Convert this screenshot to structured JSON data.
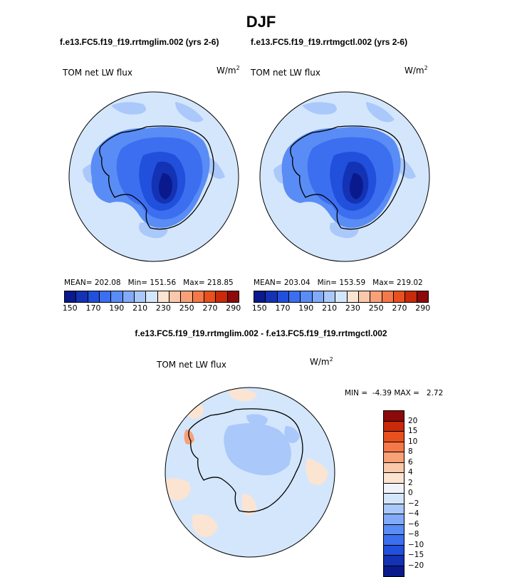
{
  "figure": {
    "season": "DJF",
    "case_test": "f.e13.FC5.f19_f19.rrtmglim.002 (yrs 2-6)",
    "case_ctrl": "f.e13.FC5.f19_f19.rrtmgctl.002 (yrs 2-6)",
    "diff_title": "f.e13.FC5.f19_f19.rrtmglim.002 - f.e13.FC5.f19_f19.rrtmgctl.002"
  },
  "chart_data": [
    {
      "type": "heatmap",
      "subtype": "polar-stereographic-map",
      "region": "Southern Hemisphere (Antarctica)",
      "variable": "TOM net LW flux",
      "units": "W/m²",
      "case": "f.e13.FC5.f19_f19.rrtmglim.002 (yrs 2-6)",
      "stats": {
        "mean": "202.08",
        "min": "151.56",
        "max": "218.85"
      },
      "stats_text": "MEAN= 202.08   Min= 151.56   Max= 218.85",
      "levels": [
        150,
        160,
        170,
        180,
        190,
        200,
        210,
        220,
        230,
        240,
        250,
        260,
        270,
        280,
        290
      ],
      "tick_labels": [
        "150",
        "170",
        "190",
        "210",
        "230",
        "250",
        "270",
        "290"
      ],
      "colors": [
        "#0a1a8c",
        "#1432b4",
        "#2050dc",
        "#3c6ef0",
        "#5a8cf5",
        "#82aaf8",
        "#aac8fa",
        "#d4e6fc",
        "#fce4d2",
        "#fac8aa",
        "#f8a078",
        "#f47848",
        "#e8501e",
        "#c82a0a",
        "#8c0a0a"
      ]
    },
    {
      "type": "heatmap",
      "subtype": "polar-stereographic-map",
      "region": "Southern Hemisphere (Antarctica)",
      "variable": "TOM net LW flux",
      "units": "W/m²",
      "case": "f.e13.FC5.f19_f19.rrtmgctl.002 (yrs 2-6)",
      "stats": {
        "mean": "203.04",
        "min": "153.59",
        "max": "219.02"
      },
      "stats_text": "MEAN= 203.04   Min= 153.59   Max= 219.02",
      "levels": [
        150,
        160,
        170,
        180,
        190,
        200,
        210,
        220,
        230,
        240,
        250,
        260,
        270,
        280,
        290
      ],
      "tick_labels": [
        "150",
        "170",
        "190",
        "210",
        "230",
        "250",
        "270",
        "290"
      ],
      "colors": [
        "#0a1a8c",
        "#1432b4",
        "#2050dc",
        "#3c6ef0",
        "#5a8cf5",
        "#82aaf8",
        "#aac8fa",
        "#d4e6fc",
        "#fce4d2",
        "#fac8aa",
        "#f8a078",
        "#f47848",
        "#e8501e",
        "#c82a0a",
        "#8c0a0a"
      ]
    },
    {
      "type": "heatmap",
      "subtype": "polar-stereographic-map-difference",
      "region": "Southern Hemisphere (Antarctica)",
      "variable": "TOM net LW flux",
      "units": "W/m²",
      "case": "f.e13.FC5.f19_f19.rrtmglim.002 - f.e13.FC5.f19_f19.rrtmgctl.002",
      "stats": {
        "min": "-4.39",
        "max": "2.72"
      },
      "stats_text": "MIN =  -4.39 MAX =   2.72",
      "levels": [
        -20,
        -15,
        -10,
        -8,
        -6,
        -4,
        -2,
        0,
        2,
        4,
        6,
        8,
        10,
        15,
        20
      ],
      "tick_labels": [
        "20",
        "15",
        "10",
        "8",
        "6",
        "4",
        "2",
        "0",
        "−2",
        "−4",
        "−6",
        "−8",
        "−10",
        "−15",
        "−20"
      ],
      "colors_top_to_bottom": [
        "#8c0a0a",
        "#c82a0a",
        "#e8501e",
        "#f47848",
        "#f8a078",
        "#fac8aa",
        "#fce4d2",
        "#f0f4fa",
        "#d4e6fc",
        "#aac8fa",
        "#82aaf8",
        "#5a8cf5",
        "#3c6ef0",
        "#2050dc",
        "#1432b4",
        "#0a1a8c"
      ]
    }
  ]
}
